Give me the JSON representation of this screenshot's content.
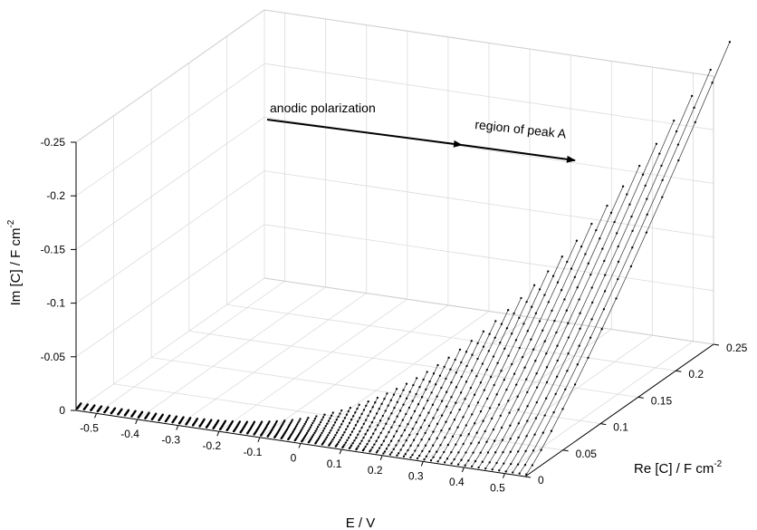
{
  "chart_data": {
    "type": "3d-line",
    "xlabel": "E / V",
    "ylabel": "Re [C] / F cm",
    "ylabel_sup": "-2",
    "zlabel": "Im [C] / F cm",
    "zlabel_sup": "-2",
    "xlim": [
      -0.55,
      0.55
    ],
    "ylim": [
      0,
      0.25
    ],
    "zlim": [
      0,
      -0.25
    ],
    "x_ticks": [
      "-0.5",
      "-0.4",
      "-0.3",
      "-0.2",
      "-0.1",
      "0",
      "0.1",
      "0.2",
      "0.3",
      "0.4",
      "0.5"
    ],
    "y_ticks": [
      "0",
      "0.05",
      "0.1",
      "0.15",
      "0.2",
      "0.25"
    ],
    "z_ticks": [
      "0",
      "-0.05",
      "-0.1",
      "-0.15",
      "-0.2",
      "-0.25"
    ],
    "grid": true,
    "series_count": 67,
    "points_per_series": 16,
    "annotations": [
      "anodic polarization",
      "region of peak A"
    ]
  }
}
